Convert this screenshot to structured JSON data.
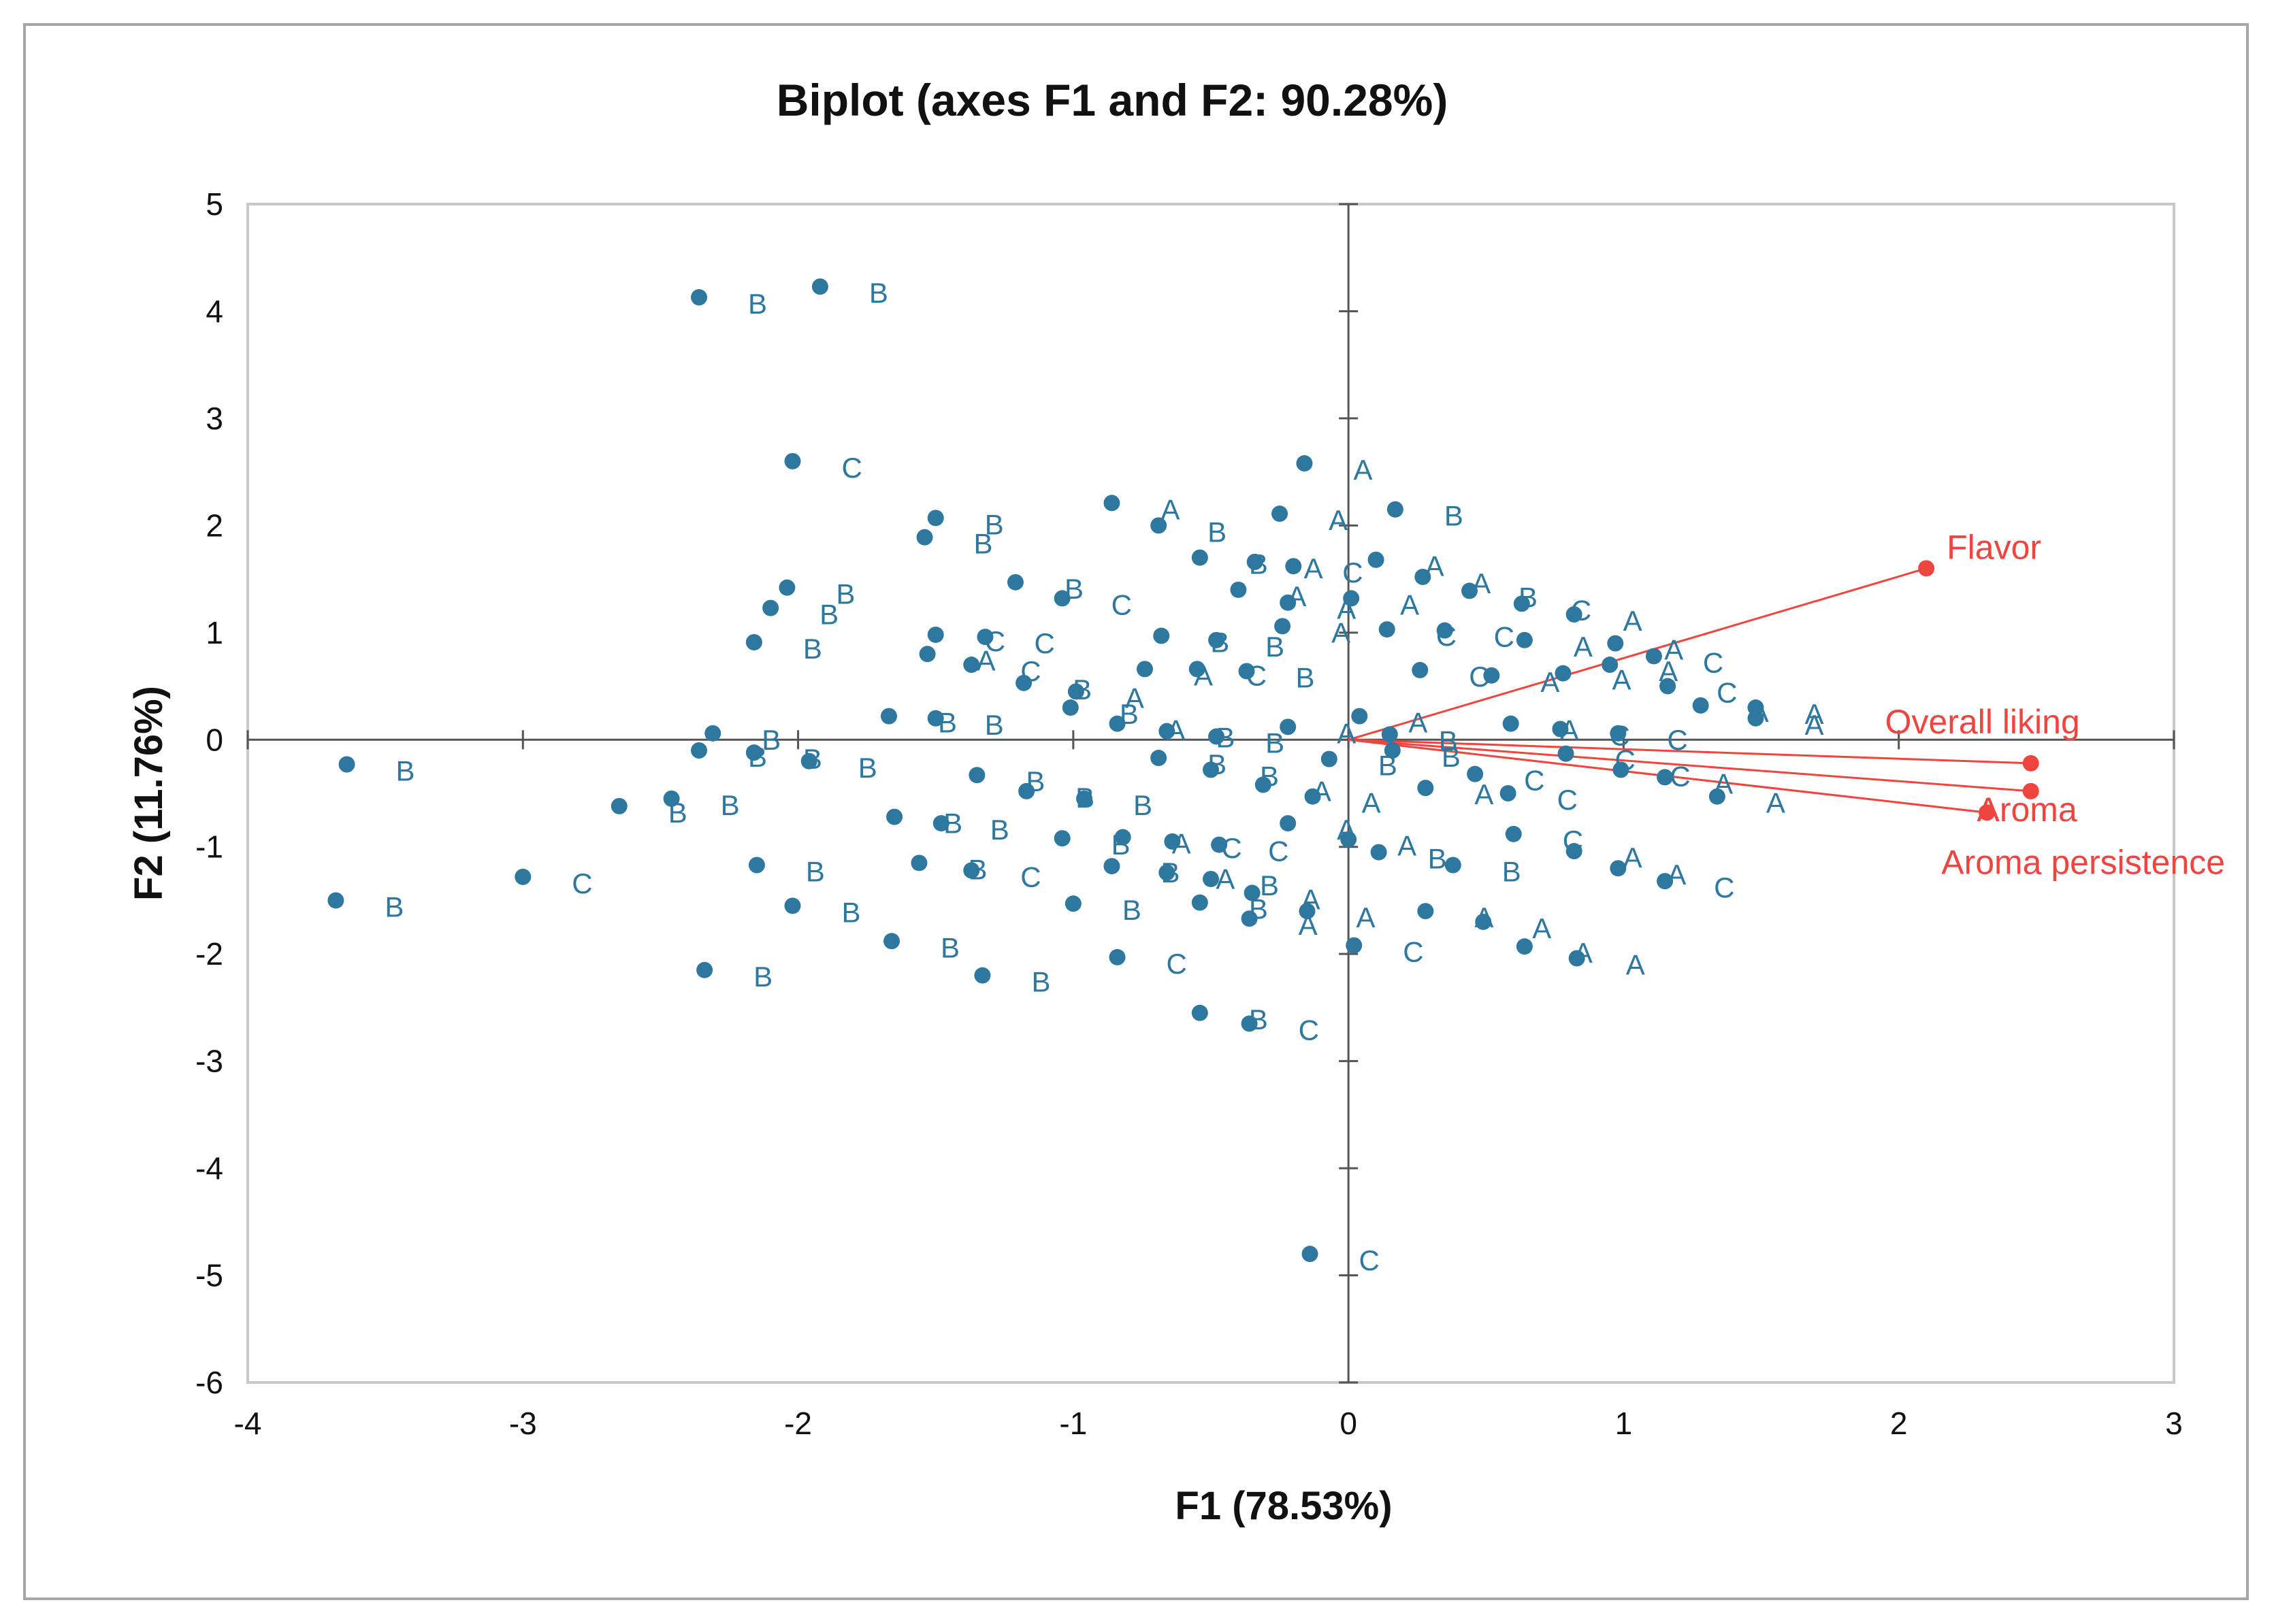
{
  "chart_data": {
    "type": "scatter",
    "title": "Biplot (axes F1 and F2: 90.28%)",
    "xlabel": "F1 (78.53%)",
    "ylabel": "F2 (11.76%)",
    "xlim": [
      -4,
      3
    ],
    "ylim": [
      -6,
      5
    ],
    "xticks": [
      -4,
      -3,
      -2,
      -1,
      0,
      1,
      2,
      3
    ],
    "xtick_labels": [
      "-4",
      "-3",
      "-2",
      "-1",
      "0",
      "1",
      "2",
      "3"
    ],
    "yticks": [
      5,
      4,
      3,
      2,
      1,
      0,
      -1,
      -2,
      -3,
      -4,
      -5,
      -6
    ],
    "ytick_labels": [
      "5",
      "4",
      "3",
      "2",
      "1",
      "0",
      "-1",
      "-2",
      "-3",
      "-4",
      "-5",
      "-6"
    ],
    "colors": {
      "observations": "#2e78a0",
      "variables": "#f0443f",
      "axes": "#555555",
      "plot_border": "#c8c8c8"
    },
    "variables": [
      {
        "name": "Flavor",
        "x": 2.1,
        "y": 1.6
      },
      {
        "name": "Overall liking",
        "x": 2.48,
        "y": -0.22
      },
      {
        "name": "Aroma",
        "x": 2.48,
        "y": -0.48
      },
      {
        "name": "Aroma persistence",
        "x": 2.32,
        "y": -0.68
      }
    ],
    "observations": [
      {
        "x": -2.36,
        "y": 4.13,
        "label": "B"
      },
      {
        "x": -1.92,
        "y": 4.23,
        "label": "B"
      },
      {
        "x": -2.02,
        "y": 2.6,
        "label": "C"
      },
      {
        "x": -0.16,
        "y": 2.58,
        "label": "A"
      },
      {
        "x": -1.5,
        "y": 2.07,
        "label": "B"
      },
      {
        "x": -1.54,
        "y": 1.89,
        "label": "B"
      },
      {
        "x": -0.86,
        "y": 2.21,
        "label": "A"
      },
      {
        "x": -0.69,
        "y": 2.0,
        "label": "B"
      },
      {
        "x": -0.25,
        "y": 2.11,
        "label": "A"
      },
      {
        "x": 0.17,
        "y": 2.15,
        "label": "B"
      },
      {
        "x": -0.54,
        "y": 1.7,
        "label": "B"
      },
      {
        "x": -0.34,
        "y": 1.66,
        "label": "A"
      },
      {
        "x": -0.2,
        "y": 1.62,
        "label": "C"
      },
      {
        "x": 0.1,
        "y": 1.68,
        "label": "A"
      },
      {
        "x": 0.27,
        "y": 1.52,
        "label": "A"
      },
      {
        "x": 0.44,
        "y": 1.39,
        "label": "B"
      },
      {
        "x": -2.04,
        "y": 1.42,
        "label": "B"
      },
      {
        "x": -2.1,
        "y": 1.23,
        "label": "B"
      },
      {
        "x": -2.16,
        "y": 0.91,
        "label": "B"
      },
      {
        "x": -1.21,
        "y": 1.47,
        "label": "B"
      },
      {
        "x": -1.04,
        "y": 1.32,
        "label": "C"
      },
      {
        "x": -0.4,
        "y": 1.4,
        "label": "A"
      },
      {
        "x": -0.22,
        "y": 1.28,
        "label": "A"
      },
      {
        "x": 0.01,
        "y": 1.32,
        "label": "A"
      },
      {
        "x": 0.63,
        "y": 1.27,
        "label": "C"
      },
      {
        "x": 0.82,
        "y": 1.17,
        "label": "A"
      },
      {
        "x": -1.5,
        "y": 0.98,
        "label": "C"
      },
      {
        "x": -1.32,
        "y": 0.96,
        "label": "C"
      },
      {
        "x": -1.53,
        "y": 0.8,
        "label": "A"
      },
      {
        "x": -1.37,
        "y": 0.7,
        "label": "C"
      },
      {
        "x": -0.68,
        "y": 0.97,
        "label": "B"
      },
      {
        "x": -0.48,
        "y": 0.93,
        "label": "B"
      },
      {
        "x": -0.24,
        "y": 1.06,
        "label": "A"
      },
      {
        "x": 0.14,
        "y": 1.03,
        "label": "C"
      },
      {
        "x": 0.35,
        "y": 1.02,
        "label": "C"
      },
      {
        "x": 0.64,
        "y": 0.93,
        "label": "A"
      },
      {
        "x": 0.97,
        "y": 0.9,
        "label": "A"
      },
      {
        "x": 1.11,
        "y": 0.78,
        "label": "C"
      },
      {
        "x": -1.18,
        "y": 0.53,
        "label": "B"
      },
      {
        "x": -0.99,
        "y": 0.45,
        "label": "A"
      },
      {
        "x": -0.74,
        "y": 0.66,
        "label": "A"
      },
      {
        "x": -0.55,
        "y": 0.66,
        "label": "C"
      },
      {
        "x": -0.37,
        "y": 0.64,
        "label": "B"
      },
      {
        "x": 0.26,
        "y": 0.65,
        "label": "C"
      },
      {
        "x": 0.52,
        "y": 0.6,
        "label": "A"
      },
      {
        "x": 0.78,
        "y": 0.62,
        "label": "A"
      },
      {
        "x": 0.95,
        "y": 0.7,
        "label": "A"
      },
      {
        "x": 1.16,
        "y": 0.5,
        "label": "C"
      },
      {
        "x": 1.28,
        "y": 0.32,
        "label": "A"
      },
      {
        "x": 1.48,
        "y": 0.3,
        "label": "A"
      },
      {
        "x": 1.48,
        "y": 0.2,
        "label": "A"
      },
      {
        "x": -1.67,
        "y": 0.22,
        "label": "B"
      },
      {
        "x": -1.5,
        "y": 0.2,
        "label": "B"
      },
      {
        "x": -1.01,
        "y": 0.3,
        "label": "B"
      },
      {
        "x": -0.84,
        "y": 0.15,
        "label": "A"
      },
      {
        "x": -0.66,
        "y": 0.08,
        "label": "B"
      },
      {
        "x": -0.48,
        "y": 0.03,
        "label": "B"
      },
      {
        "x": -0.22,
        "y": 0.12,
        "label": "A"
      },
      {
        "x": 0.04,
        "y": 0.22,
        "label": "A"
      },
      {
        "x": 0.15,
        "y": 0.05,
        "label": "B"
      },
      {
        "x": 0.59,
        "y": 0.15,
        "label": "A"
      },
      {
        "x": 0.77,
        "y": 0.1,
        "label": "C"
      },
      {
        "x": 0.98,
        "y": 0.06,
        "label": "C"
      },
      {
        "x": -2.31,
        "y": 0.06,
        "label": "B"
      },
      {
        "x": -2.16,
        "y": -0.12,
        "label": "B"
      },
      {
        "x": -1.96,
        "y": -0.2,
        "label": "B"
      },
      {
        "x": -2.36,
        "y": -0.1,
        "label": "B"
      },
      {
        "x": -3.64,
        "y": -0.23,
        "label": "B"
      },
      {
        "x": -2.65,
        "y": -0.62,
        "label": "B"
      },
      {
        "x": -2.46,
        "y": -0.55,
        "label": "B"
      },
      {
        "x": -3.68,
        "y": -1.5,
        "label": "B"
      },
      {
        "x": -3.0,
        "y": -1.28,
        "label": "C"
      },
      {
        "x": -2.15,
        "y": -1.17,
        "label": "B"
      },
      {
        "x": -2.02,
        "y": -1.55,
        "label": "B"
      },
      {
        "x": -1.35,
        "y": -0.33,
        "label": "B"
      },
      {
        "x": -1.17,
        "y": -0.48,
        "label": "B"
      },
      {
        "x": -0.96,
        "y": -0.55,
        "label": "B"
      },
      {
        "x": -0.69,
        "y": -0.17,
        "label": "B"
      },
      {
        "x": -0.5,
        "y": -0.28,
        "label": "B"
      },
      {
        "x": -0.31,
        "y": -0.42,
        "label": "A"
      },
      {
        "x": -0.13,
        "y": -0.53,
        "label": "A"
      },
      {
        "x": -0.07,
        "y": -0.18,
        "label": "B"
      },
      {
        "x": 0.16,
        "y": -0.1,
        "label": "B"
      },
      {
        "x": 0.28,
        "y": -0.45,
        "label": "A"
      },
      {
        "x": 0.46,
        "y": -0.32,
        "label": "C"
      },
      {
        "x": 0.58,
        "y": -0.5,
        "label": "C"
      },
      {
        "x": 0.79,
        "y": -0.13,
        "label": "C"
      },
      {
        "x": 0.99,
        "y": -0.28,
        "label": "C"
      },
      {
        "x": 1.15,
        "y": -0.35,
        "label": "A"
      },
      {
        "x": 1.34,
        "y": -0.53,
        "label": "A"
      },
      {
        "x": -1.65,
        "y": -0.72,
        "label": "B"
      },
      {
        "x": -1.48,
        "y": -0.78,
        "label": "B"
      },
      {
        "x": -1.04,
        "y": -0.92,
        "label": "B"
      },
      {
        "x": -0.82,
        "y": -0.91,
        "label": "A"
      },
      {
        "x": -0.64,
        "y": -0.95,
        "label": "C"
      },
      {
        "x": -0.47,
        "y": -0.98,
        "label": "C"
      },
      {
        "x": -0.22,
        "y": -0.78,
        "label": "A"
      },
      {
        "x": 0.0,
        "y": -0.93,
        "label": "A"
      },
      {
        "x": 0.11,
        "y": -1.05,
        "label": "B"
      },
      {
        "x": 0.38,
        "y": -1.17,
        "label": "B"
      },
      {
        "x": 0.6,
        "y": -0.88,
        "label": "C"
      },
      {
        "x": 0.82,
        "y": -1.04,
        "label": "A"
      },
      {
        "x": 0.98,
        "y": -1.2,
        "label": "A"
      },
      {
        "x": 1.15,
        "y": -1.32,
        "label": "C"
      },
      {
        "x": -1.56,
        "y": -1.15,
        "label": "B"
      },
      {
        "x": -1.37,
        "y": -1.22,
        "label": "C"
      },
      {
        "x": -0.86,
        "y": -1.18,
        "label": "B"
      },
      {
        "x": -0.66,
        "y": -1.24,
        "label": "A"
      },
      {
        "x": -0.5,
        "y": -1.3,
        "label": "B"
      },
      {
        "x": -0.35,
        "y": -1.43,
        "label": "A"
      },
      {
        "x": -0.54,
        "y": -1.52,
        "label": "B"
      },
      {
        "x": -0.36,
        "y": -1.67,
        "label": "A"
      },
      {
        "x": -1.0,
        "y": -1.53,
        "label": "B"
      },
      {
        "x": -0.15,
        "y": -1.6,
        "label": "A"
      },
      {
        "x": 0.28,
        "y": -1.6,
        "label": "A"
      },
      {
        "x": 0.49,
        "y": -1.7,
        "label": "A"
      },
      {
        "x": 0.64,
        "y": -1.93,
        "label": "A"
      },
      {
        "x": 0.83,
        "y": -2.04,
        "label": "A"
      },
      {
        "x": 0.02,
        "y": -1.92,
        "label": "C"
      },
      {
        "x": -1.66,
        "y": -1.88,
        "label": "B"
      },
      {
        "x": -1.33,
        "y": -2.2,
        "label": "B"
      },
      {
        "x": -0.84,
        "y": -2.03,
        "label": "C"
      },
      {
        "x": -2.34,
        "y": -2.15,
        "label": "B"
      },
      {
        "x": -0.54,
        "y": -2.55,
        "label": "B"
      },
      {
        "x": -0.36,
        "y": -2.65,
        "label": "C"
      },
      {
        "x": -0.14,
        "y": -4.8,
        "label": "C"
      }
    ]
  }
}
